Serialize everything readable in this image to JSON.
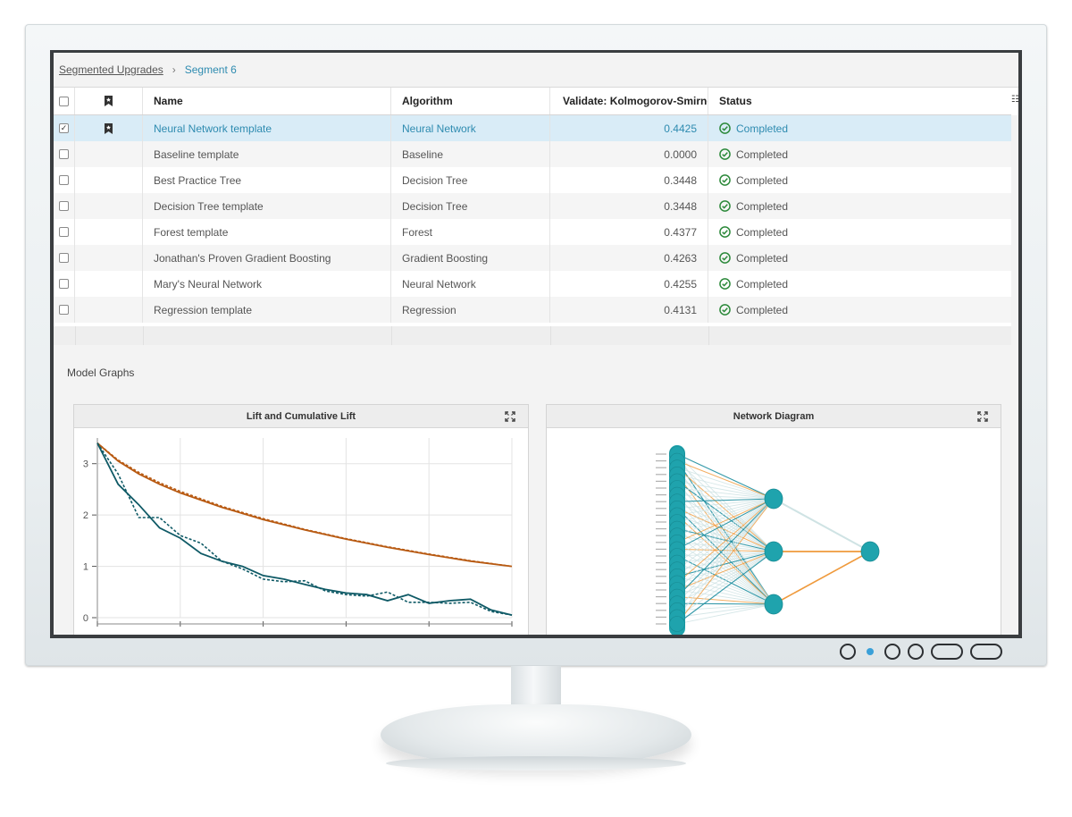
{
  "breadcrumb": {
    "parent": "Segmented Upgrades",
    "current": "Segment 6"
  },
  "table": {
    "columns": {
      "name": "Name",
      "algorithm": "Algorithm",
      "validate": "Validate: Kolmogorov-Smirno...",
      "status": "Status"
    },
    "rows": [
      {
        "name": "Neural Network template",
        "algorithm": "Neural Network",
        "value": "0.4425",
        "status": "Completed",
        "checked": true,
        "champion": true,
        "selected": true
      },
      {
        "name": "Baseline template",
        "algorithm": "Baseline",
        "value": "0.0000",
        "status": "Completed"
      },
      {
        "name": "Best Practice Tree",
        "algorithm": "Decision Tree",
        "value": "0.3448",
        "status": "Completed"
      },
      {
        "name": "Decision Tree template",
        "algorithm": "Decision Tree",
        "value": "0.3448",
        "status": "Completed"
      },
      {
        "name": "Forest template",
        "algorithm": "Forest",
        "value": "0.4377",
        "status": "Completed"
      },
      {
        "name": "Jonathan's Proven Gradient Boosting",
        "algorithm": "Gradient Boosting",
        "value": "0.4263",
        "status": "Completed"
      },
      {
        "name": "Mary's Neural Network",
        "algorithm": "Neural Network",
        "value": "0.4255",
        "status": "Completed"
      },
      {
        "name": "Regression template",
        "algorithm": "Regression",
        "value": "0.4131",
        "status": "Completed"
      }
    ]
  },
  "graphs": {
    "section_label": "Model Graphs",
    "lift_title": "Lift and Cumulative Lift",
    "network_title": "Network Diagram"
  },
  "chart_data": {
    "type": "line",
    "title": "Lift and Cumulative Lift",
    "ylim": [
      0,
      3.5
    ],
    "xlim": [
      0,
      100
    ],
    "yticks": [
      "0",
      "1",
      "2",
      "3"
    ],
    "grid": true,
    "series": [
      {
        "style": "solid",
        "color": "#b85a12",
        "x": [
          0,
          5,
          10,
          15,
          20,
          30,
          40,
          50,
          60,
          70,
          80,
          90,
          100
        ],
        "y": [
          3.4,
          3.05,
          2.8,
          2.6,
          2.43,
          2.15,
          1.91,
          1.71,
          1.53,
          1.37,
          1.23,
          1.1,
          1.0
        ]
      },
      {
        "style": "dotted",
        "color": "#b85a12",
        "x": [
          0,
          5,
          10,
          15,
          20,
          30,
          40,
          50,
          60,
          70,
          80,
          90,
          100
        ],
        "y": [
          3.4,
          3.07,
          2.83,
          2.63,
          2.46,
          2.17,
          1.93,
          1.72,
          1.54,
          1.38,
          1.24,
          1.11,
          1.0
        ]
      },
      {
        "style": "solid",
        "color": "#0f5a66",
        "x": [
          0,
          5,
          10,
          15,
          20,
          25,
          30,
          35,
          40,
          45,
          50,
          55,
          60,
          65,
          70,
          75,
          80,
          85,
          90,
          95,
          100
        ],
        "y": [
          3.4,
          2.6,
          2.2,
          1.75,
          1.55,
          1.25,
          1.1,
          1.0,
          0.82,
          0.75,
          0.65,
          0.55,
          0.48,
          0.45,
          0.33,
          0.45,
          0.28,
          0.33,
          0.36,
          0.15,
          0.05
        ]
      },
      {
        "style": "dotted",
        "color": "#0f5a66",
        "x": [
          0,
          5,
          10,
          15,
          20,
          25,
          30,
          35,
          40,
          45,
          50,
          55,
          60,
          65,
          70,
          75,
          80,
          85,
          90,
          95,
          100
        ],
        "y": [
          3.4,
          2.8,
          1.95,
          1.95,
          1.6,
          1.45,
          1.1,
          0.95,
          0.75,
          0.7,
          0.72,
          0.52,
          0.45,
          0.42,
          0.5,
          0.3,
          0.3,
          0.28,
          0.3,
          0.12,
          0.05
        ]
      }
    ]
  },
  "network": {
    "input_count": 26,
    "hidden_count": 3,
    "output_count": 1,
    "colors": {
      "node": "#1fa3ad",
      "edge_teal": "#1f8fa0",
      "edge_orange": "#ef9a3c",
      "edge_light": "#cfe3e4"
    }
  }
}
